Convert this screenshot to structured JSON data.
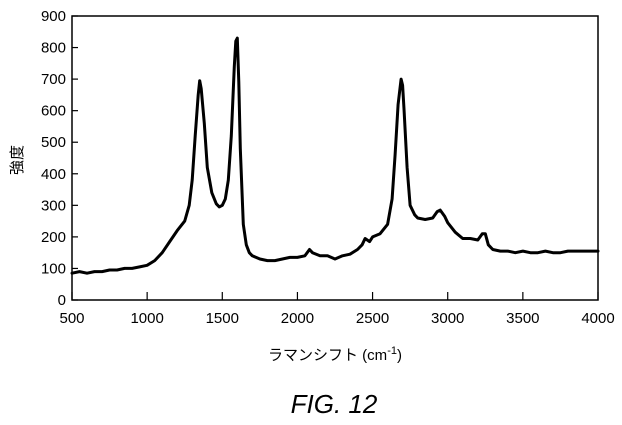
{
  "chart_data": {
    "type": "line",
    "title": "",
    "xlabel": "ラマンシフト (cm-1)",
    "xlabel_base": "ラマンシフト (cm",
    "xlabel_sup": "-1",
    "xlabel_close": ")",
    "ylabel": "強度",
    "xlim": [
      500,
      4000
    ],
    "ylim": [
      0,
      900
    ],
    "xticks": [
      500,
      1000,
      1500,
      2000,
      2500,
      3000,
      3500,
      4000
    ],
    "yticks": [
      0,
      100,
      200,
      300,
      400,
      500,
      600,
      700,
      800,
      900
    ],
    "grid": false,
    "legend": "none",
    "caption": "FIG. 12",
    "series": [
      {
        "color": "#000000",
        "x": [
          500,
          550,
          600,
          650,
          700,
          750,
          800,
          850,
          900,
          950,
          1000,
          1050,
          1100,
          1150,
          1200,
          1250,
          1280,
          1300,
          1320,
          1340,
          1350,
          1360,
          1380,
          1400,
          1430,
          1460,
          1480,
          1500,
          1520,
          1540,
          1560,
          1580,
          1590,
          1600,
          1610,
          1620,
          1640,
          1660,
          1680,
          1700,
          1750,
          1800,
          1850,
          1900,
          1950,
          2000,
          2050,
          2080,
          2100,
          2150,
          2200,
          2250,
          2300,
          2350,
          2400,
          2430,
          2450,
          2480,
          2500,
          2550,
          2600,
          2630,
          2650,
          2670,
          2690,
          2700,
          2710,
          2730,
          2750,
          2780,
          2800,
          2850,
          2900,
          2930,
          2950,
          2980,
          3000,
          3050,
          3100,
          3150,
          3200,
          3230,
          3250,
          3270,
          3300,
          3350,
          3400,
          3450,
          3500,
          3550,
          3600,
          3650,
          3700,
          3750,
          3800,
          3850,
          3900,
          3950,
          4000
        ],
        "y": [
          85,
          90,
          85,
          90,
          90,
          95,
          95,
          100,
          100,
          105,
          110,
          125,
          150,
          185,
          220,
          250,
          300,
          380,
          520,
          650,
          695,
          670,
          560,
          420,
          340,
          305,
          295,
          300,
          320,
          380,
          520,
          740,
          820,
          830,
          690,
          480,
          240,
          175,
          150,
          140,
          130,
          125,
          125,
          130,
          135,
          135,
          140,
          160,
          150,
          140,
          140,
          130,
          140,
          145,
          160,
          175,
          195,
          185,
          200,
          210,
          240,
          320,
          460,
          620,
          700,
          680,
          600,
          420,
          300,
          270,
          260,
          255,
          260,
          280,
          285,
          265,
          245,
          215,
          195,
          195,
          190,
          210,
          210,
          175,
          160,
          155,
          155,
          150,
          155,
          150,
          150,
          155,
          150,
          150,
          155,
          155,
          155,
          155,
          155
        ]
      }
    ]
  }
}
